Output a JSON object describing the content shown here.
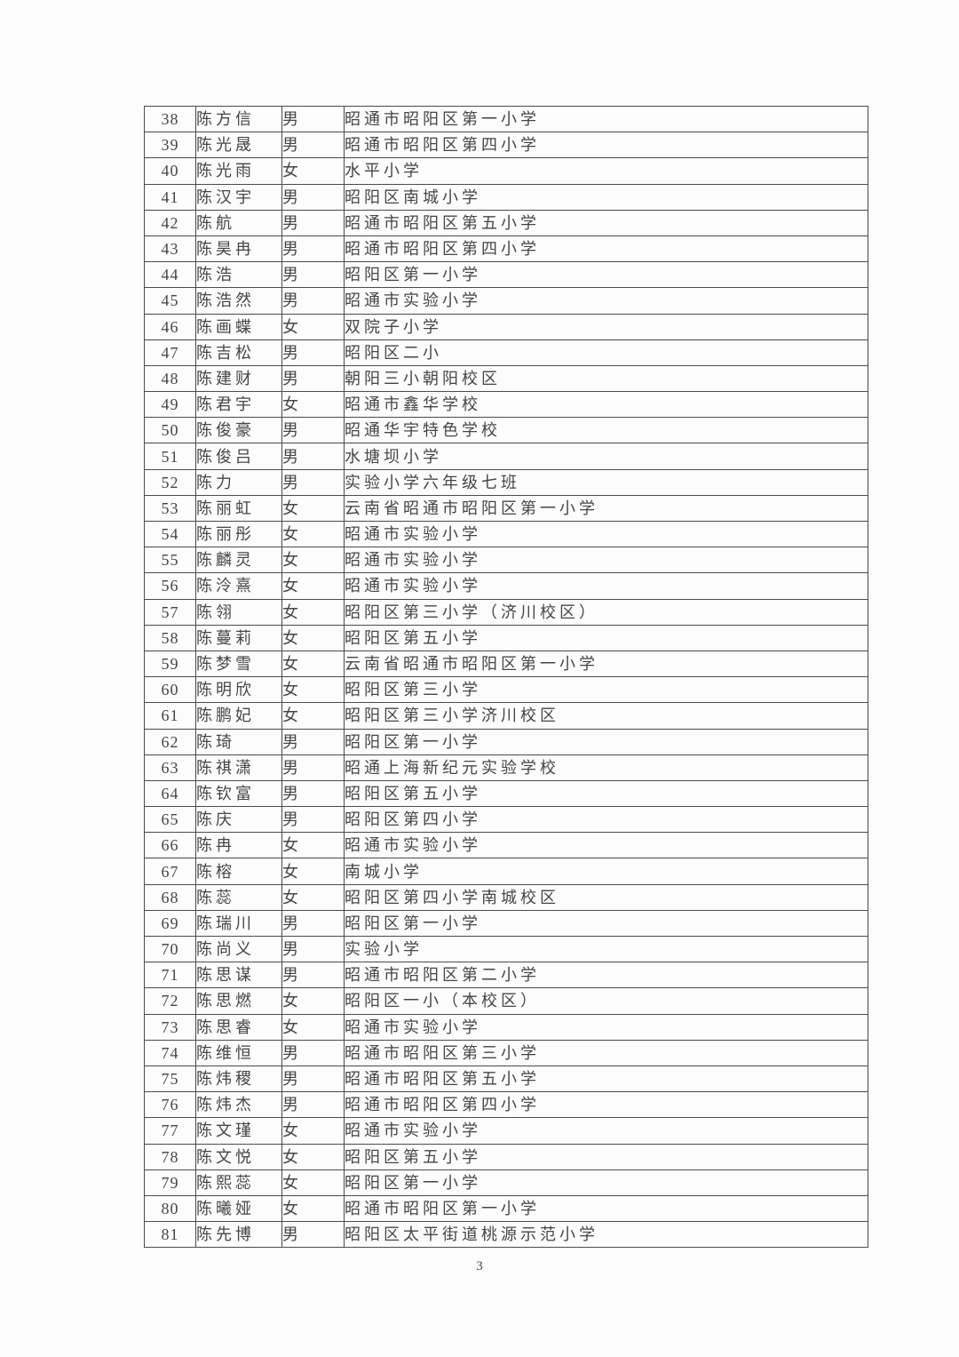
{
  "page": {
    "number": "3"
  },
  "colors": {
    "background": "#fcfcfc",
    "text": "#454545",
    "border": "#4b4b4b"
  },
  "table": {
    "rows": [
      {
        "no": "38",
        "name": "陈方信",
        "gender": "男",
        "school": "昭通市昭阳区第一小学"
      },
      {
        "no": "39",
        "name": "陈光晟",
        "gender": "男",
        "school": "昭通市昭阳区第四小学"
      },
      {
        "no": "40",
        "name": "陈光雨",
        "gender": "女",
        "school": "水平小学"
      },
      {
        "no": "41",
        "name": "陈汉宇",
        "gender": "男",
        "school": "昭阳区南城小学"
      },
      {
        "no": "42",
        "name": "陈航",
        "gender": "男",
        "school": "昭通市昭阳区第五小学"
      },
      {
        "no": "43",
        "name": "陈昊冉",
        "gender": "男",
        "school": "昭通市昭阳区第四小学"
      },
      {
        "no": "44",
        "name": "陈浩",
        "gender": "男",
        "school": "昭阳区第一小学"
      },
      {
        "no": "45",
        "name": "陈浩然",
        "gender": "男",
        "school": "昭通市实验小学"
      },
      {
        "no": "46",
        "name": "陈画蝶",
        "gender": "女",
        "school": "双院子小学"
      },
      {
        "no": "47",
        "name": "陈吉松",
        "gender": "男",
        "school": "昭阳区二小"
      },
      {
        "no": "48",
        "name": "陈建财",
        "gender": "男",
        "school": "朝阳三小朝阳校区"
      },
      {
        "no": "49",
        "name": "陈君宇",
        "gender": "女",
        "school": "昭通市鑫华学校"
      },
      {
        "no": "50",
        "name": "陈俊豪",
        "gender": "男",
        "school": "昭通华宇特色学校"
      },
      {
        "no": "51",
        "name": "陈俊吕",
        "gender": "男",
        "school": "水塘坝小学"
      },
      {
        "no": "52",
        "name": "陈力",
        "gender": "男",
        "school": "实验小学六年级七班"
      },
      {
        "no": "53",
        "name": "陈丽虹",
        "gender": "女",
        "school": "云南省昭通市昭阳区第一小学"
      },
      {
        "no": "54",
        "name": "陈丽彤",
        "gender": "女",
        "school": "昭通市实验小学"
      },
      {
        "no": "55",
        "name": "陈麟灵",
        "gender": "女",
        "school": "昭通市实验小学"
      },
      {
        "no": "56",
        "name": "陈泠熹",
        "gender": "女",
        "school": "昭通市实验小学"
      },
      {
        "no": "57",
        "name": "陈翎",
        "gender": "女",
        "school": "昭阳区第三小学（济川校区）"
      },
      {
        "no": "58",
        "name": "陈蔓莉",
        "gender": "女",
        "school": "昭阳区第五小学"
      },
      {
        "no": "59",
        "name": "陈梦雪",
        "gender": "女",
        "school": "云南省昭通市昭阳区第一小学"
      },
      {
        "no": "60",
        "name": "陈明欣",
        "gender": "女",
        "school": "昭阳区第三小学"
      },
      {
        "no": "61",
        "name": "陈鹏妃",
        "gender": "女",
        "school": "昭阳区第三小学济川校区"
      },
      {
        "no": "62",
        "name": "陈琦",
        "gender": "男",
        "school": "昭阳区第一小学"
      },
      {
        "no": "63",
        "name": "陈祺潇",
        "gender": "男",
        "school": "昭通上海新纪元实验学校"
      },
      {
        "no": "64",
        "name": "陈钦富",
        "gender": "男",
        "school": "昭阳区第五小学"
      },
      {
        "no": "65",
        "name": "陈庆",
        "gender": "男",
        "school": "昭阳区第四小学"
      },
      {
        "no": "66",
        "name": "陈冉",
        "gender": "女",
        "school": "昭通市实验小学"
      },
      {
        "no": "67",
        "name": "陈榕",
        "gender": "女",
        "school": "南城小学"
      },
      {
        "no": "68",
        "name": "陈蕊",
        "gender": "女",
        "school": "昭阳区第四小学南城校区"
      },
      {
        "no": "69",
        "name": "陈瑞川",
        "gender": "男",
        "school": "昭阳区第一小学"
      },
      {
        "no": "70",
        "name": "陈尚义",
        "gender": "男",
        "school": "实验小学"
      },
      {
        "no": "71",
        "name": "陈思谋",
        "gender": "男",
        "school": "昭通市昭阳区第二小学"
      },
      {
        "no": "72",
        "name": "陈思燃",
        "gender": "女",
        "school": "昭阳区一小（本校区）"
      },
      {
        "no": "73",
        "name": "陈思睿",
        "gender": "女",
        "school": "昭通市实验小学"
      },
      {
        "no": "74",
        "name": "陈维恒",
        "gender": "男",
        "school": "昭通市昭阳区第三小学"
      },
      {
        "no": "75",
        "name": "陈炜稷",
        "gender": "男",
        "school": "昭通市昭阳区第五小学"
      },
      {
        "no": "76",
        "name": "陈炜杰",
        "gender": "男",
        "school": "昭通市昭阳区第四小学"
      },
      {
        "no": "77",
        "name": "陈文瑾",
        "gender": "女",
        "school": "昭通市实验小学"
      },
      {
        "no": "78",
        "name": "陈文悦",
        "gender": "女",
        "school": "昭阳区第五小学"
      },
      {
        "no": "79",
        "name": "陈熙蕊",
        "gender": "女",
        "school": "昭阳区第一小学"
      },
      {
        "no": "80",
        "name": "陈曦娅",
        "gender": "女",
        "school": "昭通市昭阳区第一小学"
      },
      {
        "no": "81",
        "name": "陈先博",
        "gender": "男",
        "school": "昭阳区太平街道桃源示范小学"
      }
    ]
  }
}
